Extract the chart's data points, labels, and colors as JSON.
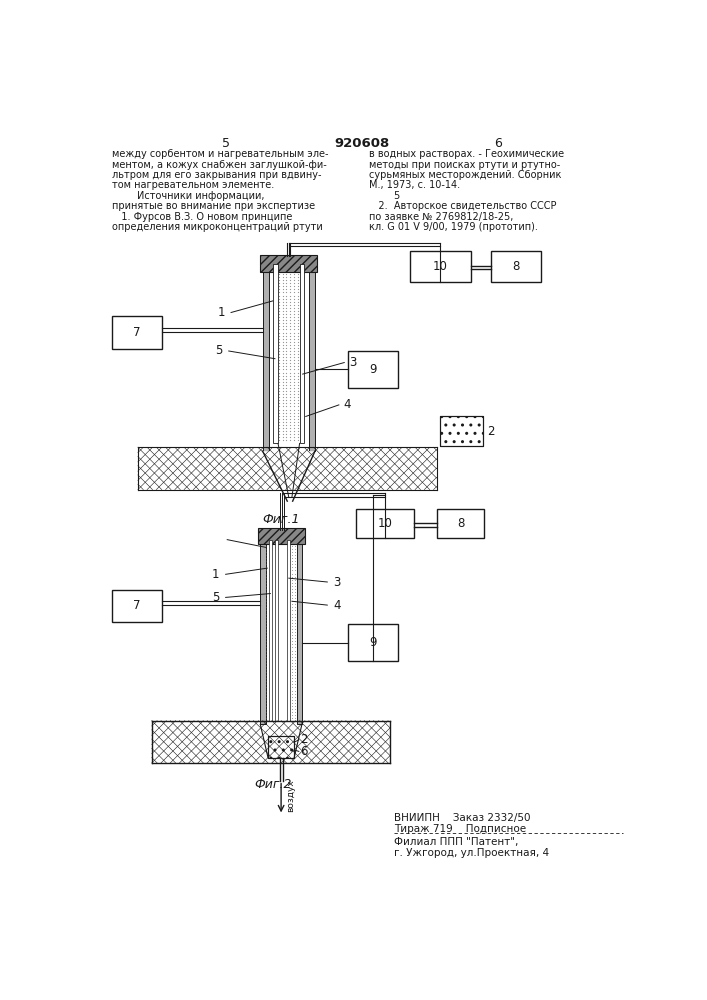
{
  "page_title": "920608",
  "col_left_num": "5",
  "col_right_num": "6",
  "text_left": [
    "между сорбентом и нагревательным эле-",
    "ментом, а кожух снабжен заглушкой-фи-",
    "льтром для его закрывания при вдвину-",
    "том нагревательном элементе.",
    "        Источники информации,",
    "принятые во внимание при экспертизе",
    "   1. Фурсов В.З. О новом принципе",
    "определения микроконцентраций ртути"
  ],
  "text_right": [
    "в водных растворах. - Геохимические",
    "методы при поисках ртути и ртутно-",
    "сурьмяных месторождений. Сборник",
    "М., 1973, с. 10-14.",
    "        5",
    "   2.  Авторское свидетельство СССР",
    "по заявке № 2769812/18-25,",
    "кл. G 01 V 9/00, 1979 (прототип)."
  ],
  "fig1_label": "Фиг.1",
  "fig2_label": "Фиг.2",
  "bottom_text": [
    "ВНИИПН    Заказ 2332/50",
    "Тираж 719    Подписное",
    "Филиал ППП \"Патент\",",
    "г. Ужгород, ул.Проектная, 4"
  ],
  "bg_color": "#ffffff",
  "line_color": "#1a1a1a",
  "text_color": "#1a1a1a"
}
